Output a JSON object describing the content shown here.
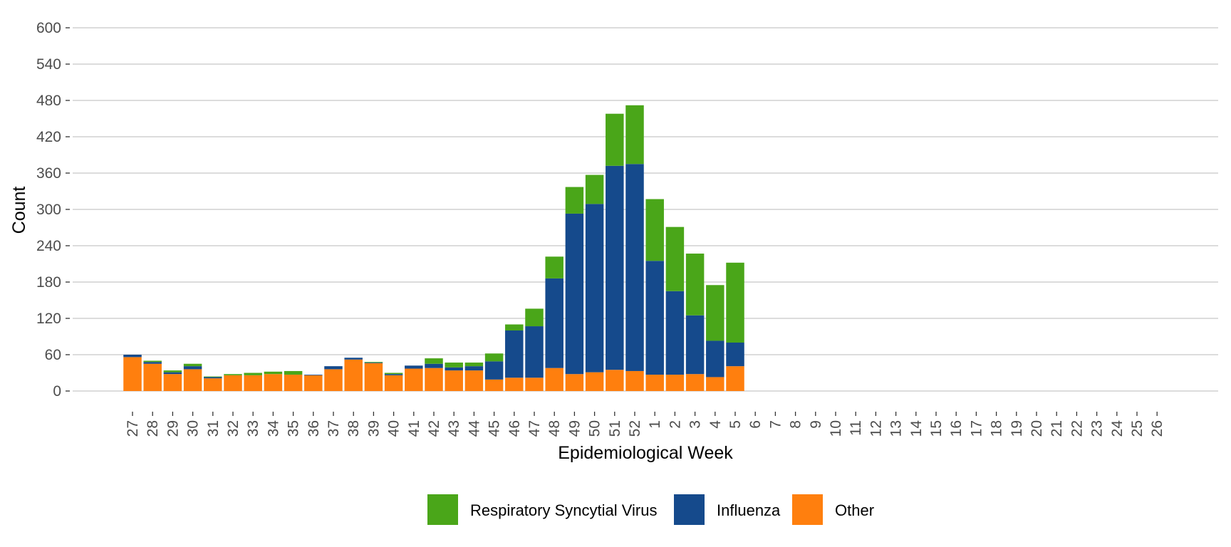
{
  "chart_data": {
    "type": "bar",
    "stacked": true,
    "xlabel": "Epidemiological Week",
    "ylabel": "Count",
    "ylim": [
      0,
      600
    ],
    "yticks": [
      0,
      60,
      120,
      180,
      240,
      300,
      360,
      420,
      480,
      540,
      600
    ],
    "grid": true,
    "legend_position": "bottom",
    "categories": [
      "27",
      "28",
      "29",
      "30",
      "31",
      "32",
      "33",
      "34",
      "35",
      "36",
      "37",
      "38",
      "39",
      "40",
      "41",
      "42",
      "43",
      "44",
      "45",
      "46",
      "47",
      "48",
      "49",
      "50",
      "51",
      "52",
      "1",
      "2",
      "3",
      "4",
      "5",
      "6",
      "7",
      "8",
      "9",
      "10",
      "11",
      "12",
      "13",
      "14",
      "15",
      "16",
      "17",
      "18",
      "19",
      "20",
      "21",
      "22",
      "23",
      "24",
      "25",
      "26"
    ],
    "series": [
      {
        "name": "Other",
        "color": "#ff7f0e",
        "values": [
          56,
          45,
          28,
          36,
          21,
          26,
          26,
          28,
          27,
          26,
          36,
          52,
          46,
          26,
          37,
          38,
          34,
          34,
          19,
          22,
          22,
          38,
          28,
          31,
          35,
          33,
          27,
          27,
          28,
          23,
          41,
          null,
          null,
          null,
          null,
          null,
          null,
          null,
          null,
          null,
          null,
          null,
          null,
          null,
          null,
          null,
          null,
          null,
          null,
          null,
          null,
          null
        ]
      },
      {
        "name": "Influenza",
        "color": "#154a8c",
        "values": [
          4,
          3,
          3,
          5,
          2,
          0,
          0,
          0,
          0,
          1,
          5,
          3,
          1,
          2,
          5,
          7,
          5,
          7,
          30,
          78,
          85,
          148,
          265,
          278,
          337,
          342,
          188,
          138,
          97,
          60,
          39,
          null,
          null,
          null,
          null,
          null,
          null,
          null,
          null,
          null,
          null,
          null,
          null,
          null,
          null,
          null,
          null,
          null,
          null,
          null,
          null,
          null
        ]
      },
      {
        "name": "Respiratory Syncytial Virus",
        "color": "#4aa619",
        "values": [
          0,
          2,
          3,
          4,
          1,
          2,
          4,
          4,
          6,
          0,
          0,
          0,
          1,
          2,
          0,
          9,
          8,
          6,
          13,
          10,
          29,
          36,
          44,
          48,
          86,
          97,
          102,
          106,
          102,
          92,
          132,
          null,
          null,
          null,
          null,
          null,
          null,
          null,
          null,
          null,
          null,
          null,
          null,
          null,
          null,
          null,
          null,
          null,
          null,
          null,
          null,
          null
        ]
      }
    ],
    "legend_order": [
      "Respiratory Syncytial Virus",
      "Influenza",
      "Other"
    ]
  }
}
